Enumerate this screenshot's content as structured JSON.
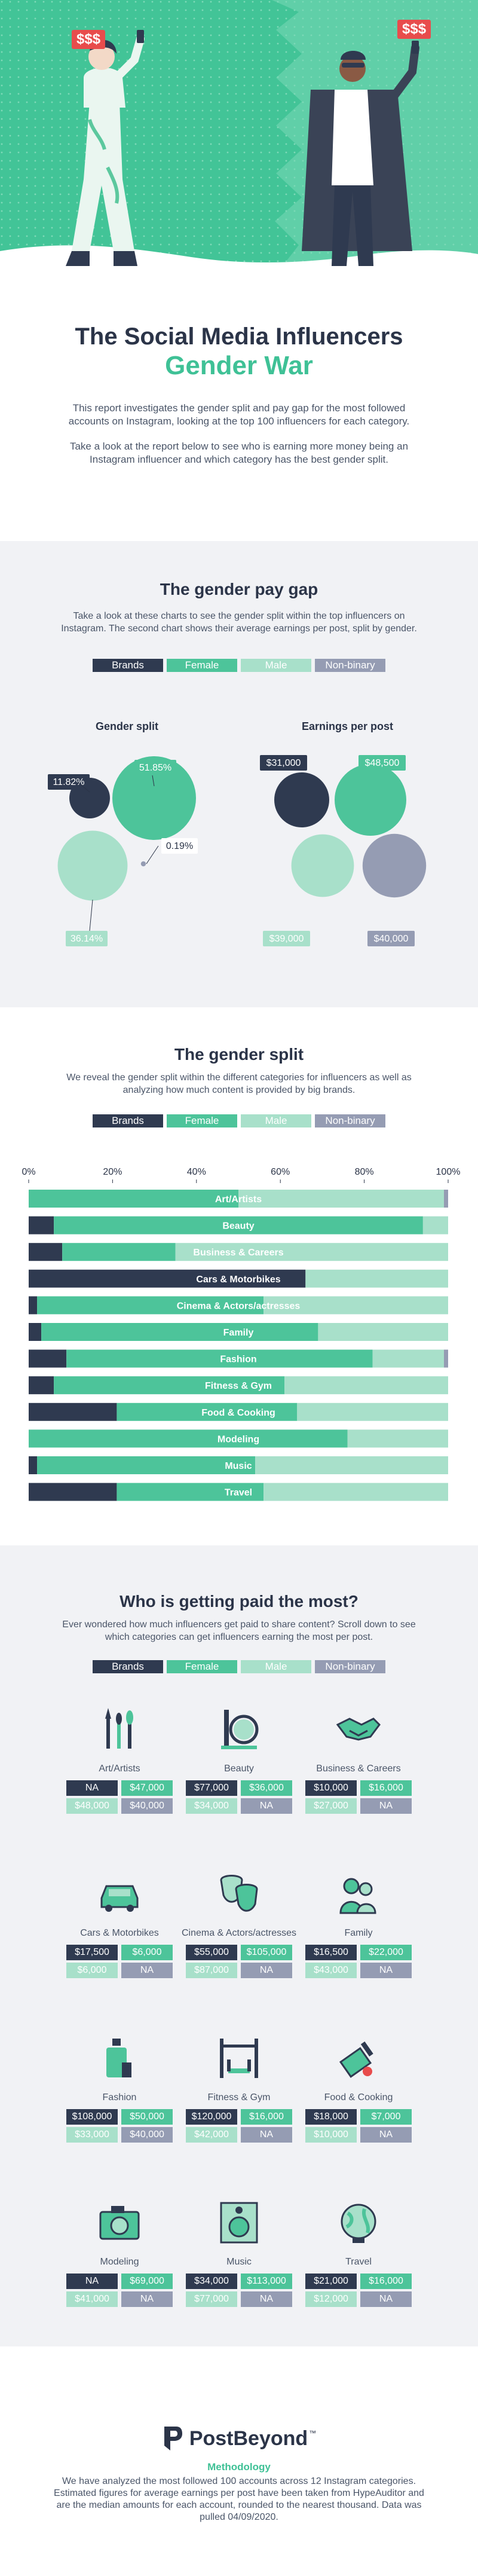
{
  "colors": {
    "brands": "#2f3a50",
    "female": "#4dc49a",
    "male": "#a8e0ca",
    "nonbinary": "#959cb3",
    "hero_bg": "#3fc196",
    "panel_bg": "#f1f2f5",
    "dark_text": "#2b3448"
  },
  "hero": {
    "money_left": "$$$",
    "money_right": "$$$"
  },
  "intro": {
    "title_line1": "The Social Media Influencers",
    "title_line2": "Gender War",
    "para1": "This report investigates the gender split and pay gap for the most followed accounts on Instagram, looking at the top 100 influencers for each category.",
    "para2": "Take a look at the report below to see who is earning more money being an Instagram influencer and which category has the best gender split."
  },
  "legend": {
    "brands": "Brands",
    "female": "Female",
    "male": "Male",
    "nonbinary": "Non-binary"
  },
  "paygap": {
    "title": "The gender pay gap",
    "desc": "Take a look at these charts to see the gender split within the top influencers on Instagram. The second chart shows their average earnings per post, split by gender.",
    "split_title": "Gender split",
    "earn_title": "Earnings per post"
  },
  "chart_data": [
    {
      "type": "bubble",
      "title": "Gender split",
      "series": [
        {
          "name": "Brands",
          "value": 11.82,
          "label": "11.82%"
        },
        {
          "name": "Female",
          "value": 51.85,
          "label": "51.85%"
        },
        {
          "name": "Male",
          "value": 36.14,
          "label": "36.14%"
        },
        {
          "name": "Non-binary",
          "value": 0.19,
          "label": "0.19%"
        }
      ]
    },
    {
      "type": "bubble",
      "title": "Earnings per post",
      "series": [
        {
          "name": "Brands",
          "value": 31000,
          "label": "$31,000"
        },
        {
          "name": "Female",
          "value": 48500,
          "label": "$48,500"
        },
        {
          "name": "Male",
          "value": 39000,
          "label": "$39,000"
        },
        {
          "name": "Non-binary",
          "value": 40000,
          "label": "$40,000"
        }
      ]
    },
    {
      "type": "bar",
      "stacked": true,
      "orientation": "horizontal",
      "title": "The gender split",
      "xticks": [
        "0%",
        "20%",
        "40%",
        "60%",
        "80%",
        "100%"
      ],
      "xlim": [
        0,
        100
      ],
      "categories": [
        "Art/Artists",
        "Beauty",
        "Business & Careers",
        "Cars & Motorbikes",
        "Cinema & Actors/actresses",
        "Family",
        "Fashion",
        "Fitness & Gym",
        "Food & Cooking",
        "Modeling",
        "Music",
        "Travel"
      ],
      "series": [
        {
          "name": "Brands",
          "values": [
            0,
            6,
            8,
            66,
            2,
            3,
            9,
            6,
            21,
            0,
            2,
            21
          ]
        },
        {
          "name": "Female",
          "values": [
            50,
            88,
            27,
            0,
            54,
            66,
            73,
            55,
            43,
            76,
            52,
            35
          ]
        },
        {
          "name": "Male",
          "values": [
            49,
            6,
            65,
            34,
            44,
            31,
            17,
            39,
            36,
            24,
            46,
            44
          ]
        },
        {
          "name": "Non-binary",
          "values": [
            1,
            0,
            0,
            0,
            0,
            0,
            1,
            0,
            0,
            0,
            0,
            0
          ]
        }
      ]
    }
  ],
  "split": {
    "title": "The gender split",
    "desc": "We reveal the gender split within the different categories for influencers as well as analyzing how much content is provided by big brands."
  },
  "paid": {
    "title": "Who is getting paid the most?",
    "desc": "Ever wondered how much influencers get paid to share content? Scroll down to see which categories can get influencers earning the most per post.",
    "items": [
      {
        "name": "Art/Artists",
        "icon": "brushes-icon",
        "brands": "NA",
        "female": "$47,000",
        "male": "$48,000",
        "nonbinary": "$40,000"
      },
      {
        "name": "Beauty",
        "icon": "mirror-icon",
        "brands": "$77,000",
        "female": "$36,000",
        "male": "$34,000",
        "nonbinary": "NA"
      },
      {
        "name": "Business & Careers",
        "icon": "handshake-icon",
        "brands": "$10,000",
        "female": "$16,000",
        "male": "$27,000",
        "nonbinary": "NA"
      },
      {
        "name": "Cars & Motorbikes",
        "icon": "car-icon",
        "brands": "$17,500",
        "female": "$6,000",
        "male": "$6,000",
        "nonbinary": "NA"
      },
      {
        "name": "Cinema & Actors/actresses",
        "icon": "masks-icon",
        "brands": "$55,000",
        "female": "$105,000",
        "male": "$87,000",
        "nonbinary": "NA"
      },
      {
        "name": "Family",
        "icon": "family-icon",
        "brands": "$16,500",
        "female": "$22,000",
        "male": "$43,000",
        "nonbinary": "NA"
      },
      {
        "name": "Fashion",
        "icon": "perfume-icon",
        "brands": "$108,000",
        "female": "$50,000",
        "male": "$33,000",
        "nonbinary": "$40,000"
      },
      {
        "name": "Fitness & Gym",
        "icon": "barbell-icon",
        "brands": "$120,000",
        "female": "$16,000",
        "male": "$42,000",
        "nonbinary": "NA"
      },
      {
        "name": "Food & Cooking",
        "icon": "cleaver-icon",
        "brands": "$18,000",
        "female": "$7,000",
        "male": "$10,000",
        "nonbinary": "NA"
      },
      {
        "name": "Modeling",
        "icon": "camera-icon",
        "brands": "NA",
        "female": "$69,000",
        "male": "$41,000",
        "nonbinary": "NA"
      },
      {
        "name": "Music",
        "icon": "speaker-icon",
        "brands": "$34,000",
        "female": "$113,000",
        "male": "$77,000",
        "nonbinary": "NA"
      },
      {
        "name": "Travel",
        "icon": "globe-icon",
        "brands": "$21,000",
        "female": "$16,000",
        "male": "$12,000",
        "nonbinary": "NA"
      }
    ]
  },
  "footer": {
    "brand": "PostBeyond",
    "tm": "™",
    "method_title": "Methodology",
    "method_text": "We have analyzed the most followed 100 accounts across 12 Instagram categories. Estimated figures for average earnings per post have been taken from HypeAuditor and are the median amounts for each account, rounded to the nearest thousand. Data was pulled 04/09/2020."
  }
}
